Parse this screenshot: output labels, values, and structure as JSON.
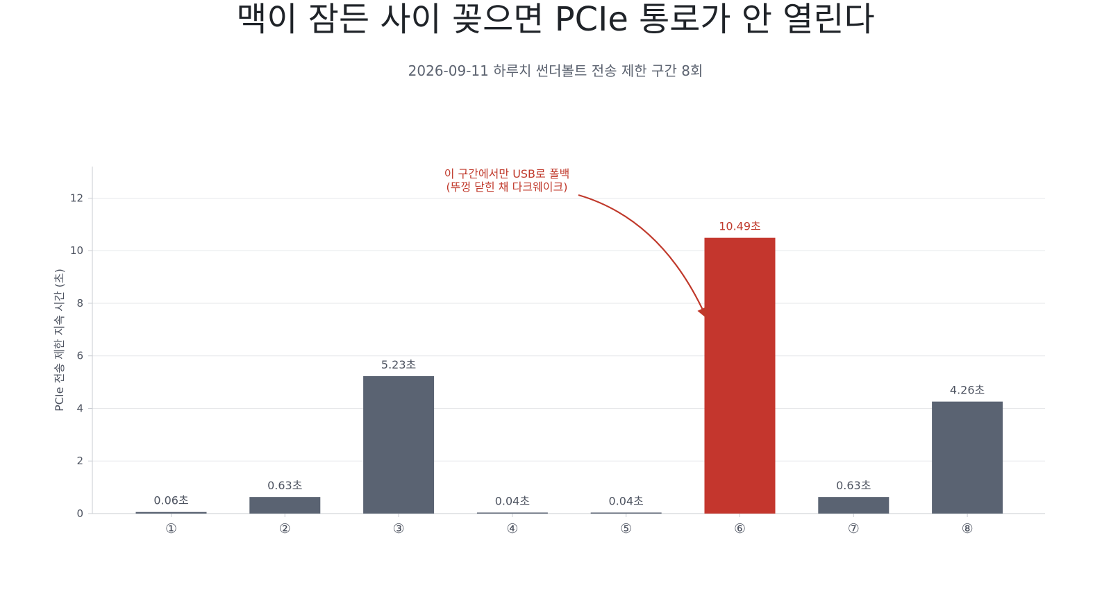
{
  "colors": {
    "default_bar": "#5a6372",
    "highlight_bar": "#c4362d",
    "annotation": "#c0392b",
    "grid": "#e6e7ea",
    "axis": "#c9ccd2",
    "text_main": "#1f2328",
    "text_muted": "#4d5360"
  },
  "chart_data": {
    "type": "bar",
    "title": "맥이 잠든 사이 꽂으면 PCIe 통로가 안 열린다",
    "subtitle": "2026-09-11 하루치 썬더볼트 전송 제한 구간 8회",
    "xlabel": "",
    "ylabel": "PCIe 전송 제한 지속 시간 (초)",
    "categories": [
      "①",
      "②",
      "③",
      "④",
      "⑤",
      "⑥",
      "⑦",
      "⑧"
    ],
    "values": [
      0.06,
      0.63,
      5.23,
      0.04,
      0.04,
      10.49,
      0.63,
      4.26
    ],
    "value_labels": [
      "0.06초",
      "0.63초",
      "5.23초",
      "0.04초",
      "0.04초",
      "10.49초",
      "0.63초",
      "4.26초"
    ],
    "highlight_index": 5,
    "ylim": [
      0,
      13.2
    ],
    "yticks": [
      0,
      2,
      4,
      6,
      8,
      10,
      12
    ],
    "grid": true,
    "legend": "none",
    "annotation": {
      "lines": [
        "이 구간에서만 USB로 폴백",
        "(뚜껑 닫힌 채 다크웨이크)"
      ],
      "target_index": 5,
      "target_value": 7.5
    }
  }
}
